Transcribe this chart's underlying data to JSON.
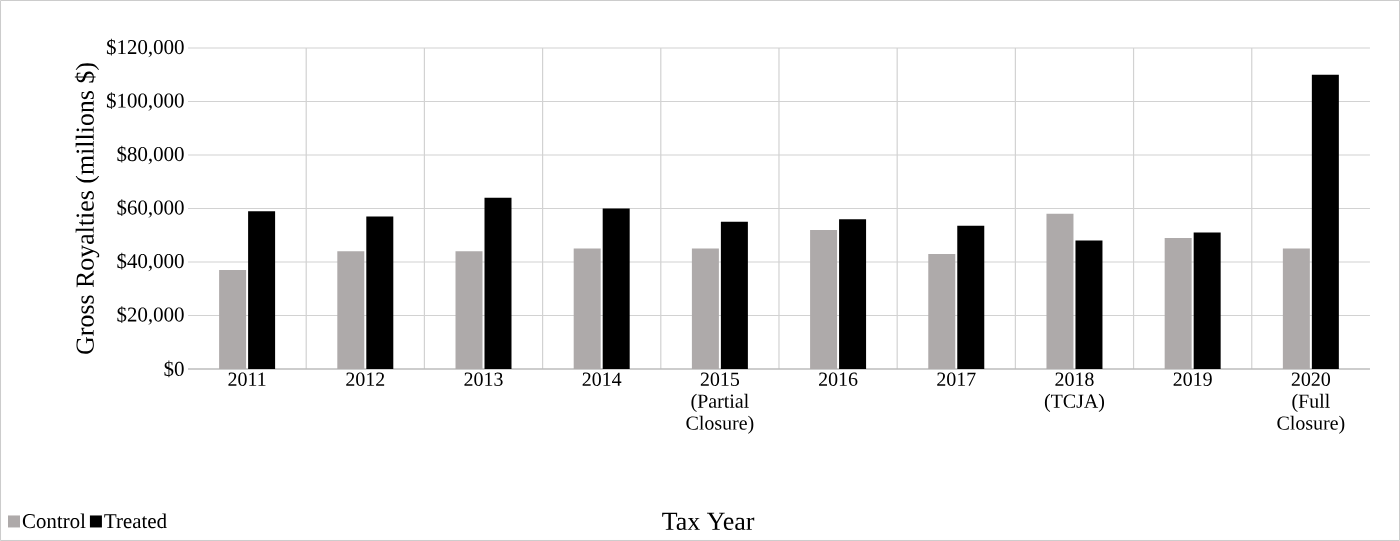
{
  "chart_data": {
    "type": "bar",
    "xlabel": "Tax Year",
    "ylabel": "Gross Royalties (millions $)",
    "categories": [
      "2011",
      "2012",
      "2013",
      "2014",
      "2015 (Partial Closure)",
      "2016",
      "2017",
      "2018 (TCJA)",
      "2019",
      "2020 (Full Closure)"
    ],
    "series": [
      {
        "name": "Control",
        "color": "#aeaaaa",
        "values": [
          37000,
          44000,
          44000,
          45000,
          45000,
          52000,
          43000,
          58000,
          49000,
          45000
        ]
      },
      {
        "name": "Treated",
        "color": "#000000",
        "values": [
          59000,
          57000,
          64000,
          60000,
          55000,
          56000,
          53500,
          48000,
          51000,
          110000
        ]
      }
    ],
    "ylim": [
      0,
      120000
    ],
    "yticks": [
      {
        "value": 0,
        "label": "$0"
      },
      {
        "value": 20000,
        "label": "$20,000"
      },
      {
        "value": 40000,
        "label": "$40,000"
      },
      {
        "value": 60000,
        "label": "$60,000"
      },
      {
        "value": 80000,
        "label": "$80,000"
      },
      {
        "value": 100000,
        "label": "$100,000"
      },
      {
        "value": 120000,
        "label": "$120,000"
      }
    ],
    "grid": true,
    "legend": "bottom left"
  }
}
